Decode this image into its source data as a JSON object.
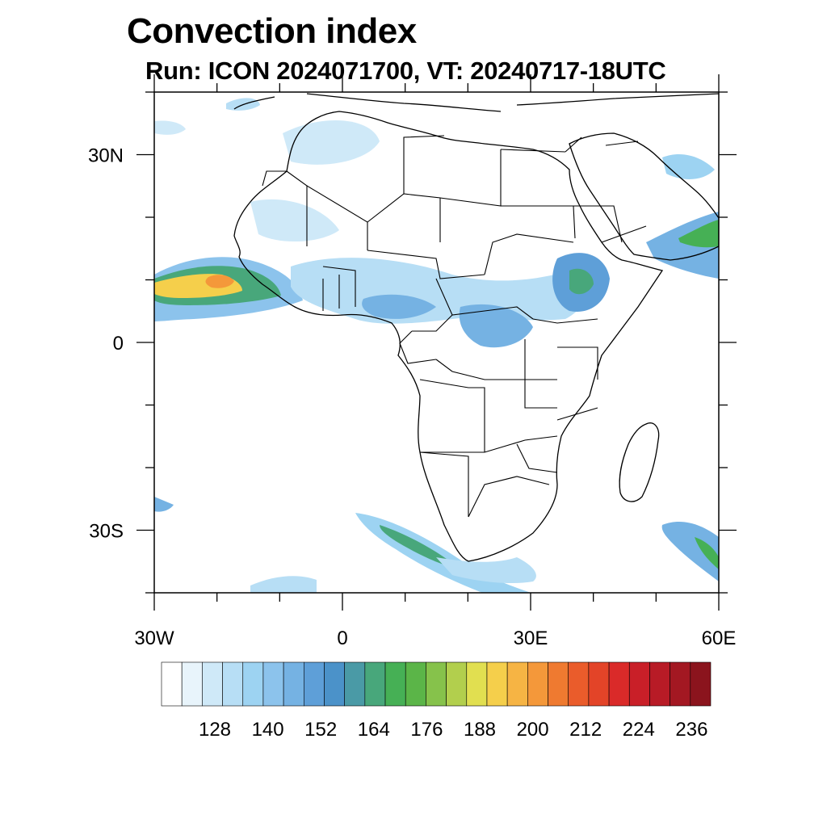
{
  "title": "Convection index",
  "subtitle": "Run: ICON 2024071700,  VT: 20240717-18UTC",
  "map": {
    "lon_range": [
      -30,
      60
    ],
    "lat_range": [
      -40,
      40
    ],
    "lat_labels": [
      {
        "lat": 30,
        "text": "30N"
      },
      {
        "lat": 0,
        "text": "0"
      },
      {
        "lat": -30,
        "text": "30S"
      }
    ],
    "lon_labels": [
      {
        "lon": -30,
        "text": "30W"
      },
      {
        "lon": 0,
        "text": "0"
      },
      {
        "lon": 30,
        "text": "30E"
      },
      {
        "lon": 60,
        "text": "60E"
      }
    ]
  },
  "colorbar": {
    "labels": [
      "128",
      "140",
      "152",
      "164",
      "176",
      "188",
      "200",
      "212",
      "224",
      "236"
    ],
    "colors": [
      "#ffffff",
      "#e8f4fb",
      "#cfe9f8",
      "#b7def5",
      "#9dd3f2",
      "#8cc3ec",
      "#75b2e3",
      "#5e9fd8",
      "#4b92c9",
      "#4a9aa6",
      "#48a77b",
      "#46b055",
      "#5bb548",
      "#86c24b",
      "#b2cf4d",
      "#e1df50",
      "#f5cf4b",
      "#f6b444",
      "#f4983a",
      "#ef7a30",
      "#ea5c2b",
      "#e34428",
      "#da2a29",
      "#c91f28",
      "#b81b26",
      "#a31822",
      "#8b141d"
    ]
  },
  "colors": {
    "ocean": "#ffffff",
    "land": "#ffffff",
    "border": "#000000"
  }
}
